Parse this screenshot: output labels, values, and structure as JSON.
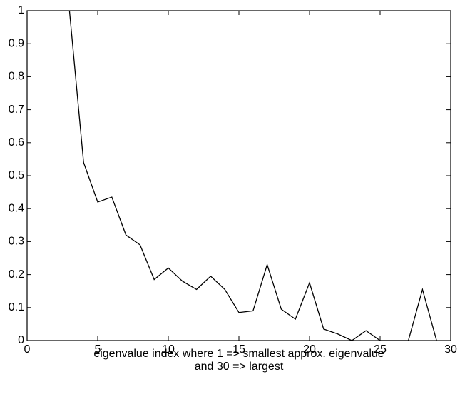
{
  "chart_data": {
    "type": "line",
    "xlabel": [
      "eigenvalue index where 1 => smallest approx. eigenvalue",
      "and 30 => largest"
    ],
    "x": [
      3,
      4,
      5,
      6,
      7,
      8,
      9,
      10,
      11,
      12,
      13,
      14,
      15,
      16,
      17,
      18,
      19,
      20,
      21,
      22,
      23,
      24,
      25,
      26,
      27,
      28,
      29
    ],
    "values": [
      1,
      0.54,
      0.42,
      0.435,
      0.32,
      0.29,
      0.185,
      0.22,
      0.18,
      0.155,
      0.195,
      0.155,
      0.085,
      0.09,
      0.23,
      0.095,
      0.065,
      0.175,
      0.035,
      0.02,
      0,
      0.03,
      0,
      0,
      0,
      0.155,
      0
    ],
    "color": "#000000",
    "xlim": [
      0,
      30
    ],
    "xticks": [
      0,
      5,
      10,
      15,
      20,
      25,
      30
    ],
    "ylim": [
      0,
      1
    ],
    "yticks": [
      0,
      0.1,
      0.2,
      0.3,
      0.4,
      0.5,
      0.6,
      0.7,
      0.8,
      0.9,
      1
    ],
    "grid": false
  }
}
